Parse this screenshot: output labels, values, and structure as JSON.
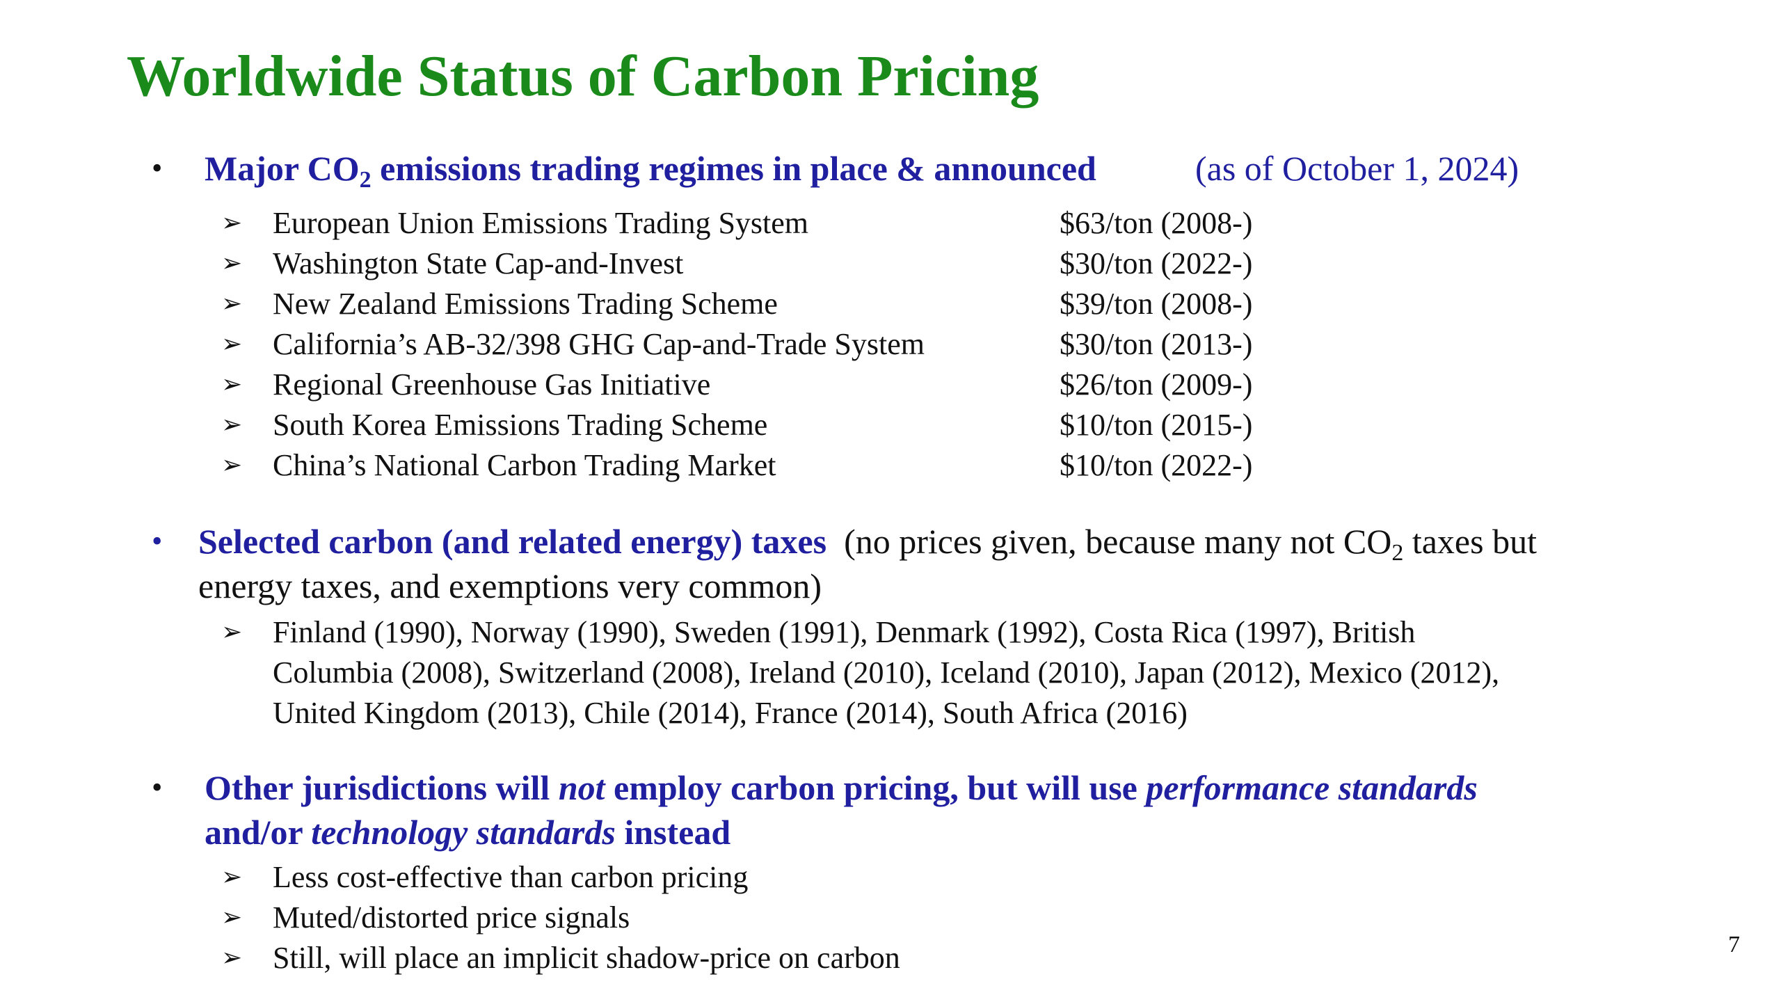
{
  "colors": {
    "title": "#1a8a1a",
    "heading": "#1f1fa0",
    "body": "#111111"
  },
  "icons": {
    "bullet": "bullet-dot-icon",
    "item": "arrow-right-icon"
  },
  "title": "Worldwide Status of Carbon Pricing",
  "section1": {
    "bullet": "•",
    "heading_pre": "Major CO",
    "heading_sub": "2",
    "heading_post": " emissions trading regimes in place & announced",
    "note": "(as of October 1, 2024)",
    "items": [
      {
        "label": "European Union Emissions Trading System",
        "price": "$63/ton (2008-)"
      },
      {
        "label": "Washington State Cap-and-Invest",
        "price": "$30/ton (2022-)"
      },
      {
        "label": "New Zealand Emissions Trading Scheme",
        "price": "$39/ton (2008-)"
      },
      {
        "label": "California’s AB-32/398 GHG Cap-and-Trade System",
        "price": "$30/ton (2013-)"
      },
      {
        "label": "Regional Greenhouse Gas Initiative",
        "price": "$26/ton (2009-)"
      },
      {
        "label": "South Korea Emissions Trading Scheme",
        "price": "$10/ton (2015-)"
      },
      {
        "label": "China’s National Carbon Trading Market",
        "price": "$10/ton (2022-)"
      }
    ]
  },
  "section2": {
    "bullet": "•",
    "heading": "Selected carbon (and related energy) taxes",
    "note_pre": "(no prices given, because many not CO",
    "note_sub": "2",
    "note_post": " taxes but",
    "note_line2": "energy taxes, and exemptions very common)",
    "countries_line1": "Finland (1990), Norway (1990), Sweden (1991), Denmark (1992), Costa Rica (1997), British",
    "countries_line2": "Columbia (2008), Switzerland (2008), Ireland (2010), Iceland (2010), Japan (2012), Mexico (2012),",
    "countries_line3": "United Kingdom (2013), Chile (2014), France (2014), South Africa (2016)"
  },
  "section3": {
    "bullet": "•",
    "line1_a": "Other jurisdictions will ",
    "line1_b": "not",
    "line1_c": " employ carbon pricing, but will use ",
    "line1_d": "performance standards",
    "line2_a": "and/or ",
    "line2_b": "technology standards",
    "line2_c": " instead",
    "items": [
      "Less cost-effective than carbon pricing",
      "Muted/distorted price signals",
      "Still, will place an implicit shadow-price on carbon"
    ]
  },
  "page_number": "7"
}
